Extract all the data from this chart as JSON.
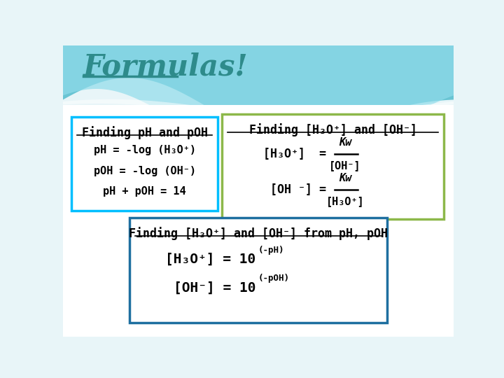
{
  "title": "Formulas!",
  "title_color": "#2E8B8B",
  "bg_color": "#e8f5f8",
  "box1": {
    "title": "Finding pH and pOH",
    "lines": [
      "pH = -log (H₃O⁺)",
      "pOH = -log (OH⁻)",
      "pH + pOH = 14"
    ],
    "border_color": "#00BFFF",
    "text_color": "#000000"
  },
  "box2": {
    "title": "Finding [H₃O⁺] and [OH⁻]",
    "frac1_left": "[H₃O⁺]  =",
    "frac1_num": "Kw",
    "frac1_den": "[OH⁻]",
    "frac2_left": "[OH ⁻] =",
    "frac2_num": "Kw",
    "frac2_den": "[H₃O⁺]",
    "border_color": "#8DB84A",
    "text_color": "#000000"
  },
  "box3": {
    "title": "Finding [H₃O⁺] and [OH⁻] from pH, pOH",
    "line1_main": "[H₃O⁺] = 10",
    "line1_sup": "(-pH)",
    "line2_main": "[OH⁻] = 10",
    "line2_sup": "(-pOH)",
    "border_color": "#1E6FA0",
    "text_color": "#000000"
  }
}
